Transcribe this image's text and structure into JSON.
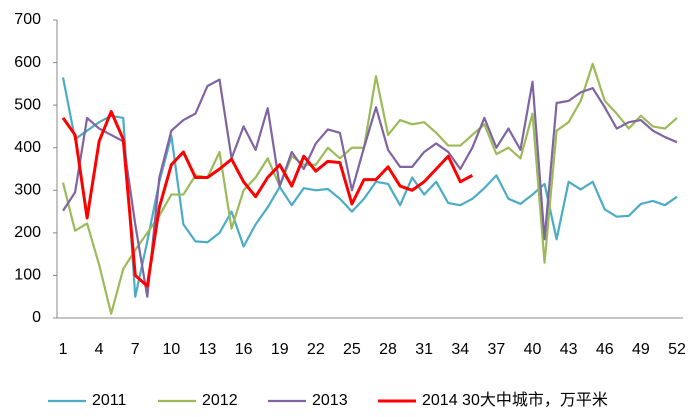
{
  "chart_data": {
    "type": "line",
    "categories": [
      1,
      null,
      null,
      4,
      null,
      null,
      7,
      null,
      null,
      10,
      null,
      null,
      13,
      null,
      null,
      16,
      null,
      null,
      19,
      null,
      null,
      22,
      null,
      null,
      25,
      null,
      null,
      28,
      null,
      null,
      31,
      null,
      null,
      34,
      null,
      null,
      37,
      null,
      null,
      40,
      null,
      null,
      43,
      null,
      null,
      46,
      null,
      null,
      49,
      null,
      null,
      52
    ],
    "ylim": [
      0,
      700
    ],
    "yticks": [
      0,
      100,
      200,
      300,
      400,
      500,
      600,
      700
    ],
    "grid": false,
    "legend": "bottom",
    "series": [
      {
        "name": "2011",
        "color": "#4bacc6",
        "values": [
          565,
          420,
          440,
          460,
          475,
          470,
          50,
          180,
          320,
          428,
          220,
          180,
          178,
          200,
          250,
          168,
          220,
          260,
          308,
          265,
          305,
          300,
          303,
          280,
          250,
          280,
          320,
          315,
          265,
          330,
          290,
          320,
          270,
          265,
          280,
          305,
          335,
          280,
          268,
          290,
          315,
          185,
          320,
          302,
          320,
          255,
          238,
          240,
          268,
          275,
          265,
          285
        ]
      },
      {
        "name": "2012",
        "color": "#9bbb59",
        "values": [
          318,
          205,
          222,
          125,
          10,
          115,
          160,
          200,
          240,
          290,
          290,
          335,
          330,
          390,
          210,
          300,
          330,
          375,
          310,
          380,
          360,
          360,
          400,
          375,
          400,
          400,
          568,
          430,
          465,
          455,
          460,
          435,
          405,
          405,
          430,
          455,
          385,
          400,
          375,
          480,
          130,
          440,
          460,
          510,
          597,
          510,
          480,
          445,
          475,
          450,
          445,
          470
        ]
      },
      {
        "name": "2013",
        "color": "#8064a2",
        "values": [
          252,
          295,
          470,
          445,
          430,
          415,
          220,
          50,
          330,
          440,
          465,
          480,
          545,
          560,
          375,
          450,
          395,
          493,
          310,
          390,
          350,
          410,
          443,
          435,
          300,
          400,
          495,
          395,
          355,
          355,
          390,
          410,
          390,
          350,
          400,
          470,
          400,
          445,
          395,
          555,
          185,
          505,
          510,
          530,
          540,
          495,
          445,
          460,
          465,
          440,
          425,
          413
        ]
      },
      {
        "name": "2014 30大中城市，万平米",
        "color": "#ff0000",
        "values": [
          470,
          430,
          235,
          415,
          485,
          420,
          100,
          75,
          260,
          360,
          390,
          330,
          330,
          350,
          373,
          320,
          285,
          330,
          360,
          310,
          380,
          345,
          368,
          365,
          268,
          325,
          325,
          355,
          310,
          300,
          320,
          350,
          380,
          320,
          335,
          null,
          null,
          null,
          null,
          null,
          null,
          null,
          null,
          null,
          null,
          null,
          null,
          null,
          null,
          null,
          null,
          null
        ]
      }
    ]
  }
}
